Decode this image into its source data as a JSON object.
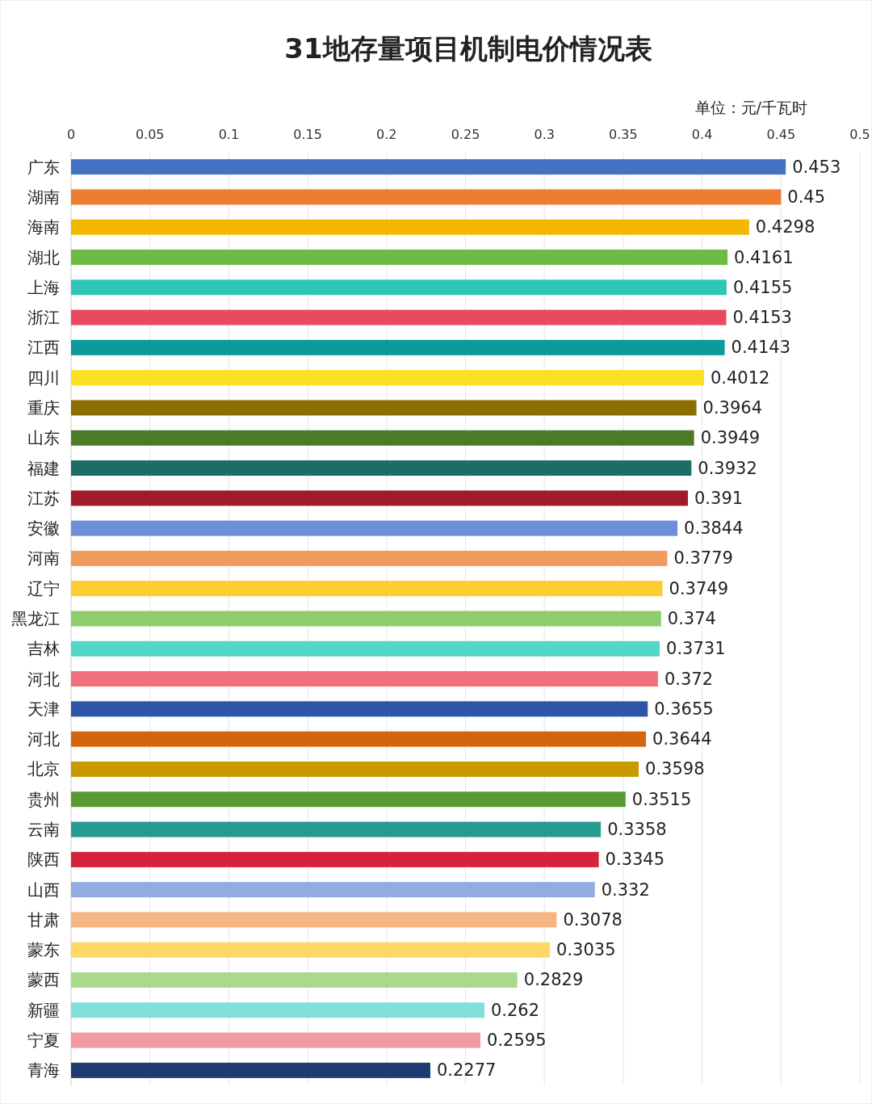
{
  "chart_data": {
    "type": "bar",
    "orientation": "horizontal",
    "title": "31地存量项目机制电价情况表",
    "annotations": [
      "单位：元/千瓦时"
    ],
    "categories": [
      "广东",
      "湖南",
      "海南",
      "湖北",
      "上海",
      "浙江",
      "江西",
      "四川",
      "重庆",
      "山东",
      "福建",
      "江苏",
      "安徽",
      "河南",
      "辽宁",
      "黑龙江",
      "吉林",
      "河北",
      "天津",
      "河北",
      "北京",
      "贵州",
      "云南",
      "陕西",
      "山西",
      "甘肃",
      "蒙东",
      "蒙西",
      "新疆",
      "宁夏",
      "青海"
    ],
    "values": [
      0.453,
      0.45,
      0.4298,
      0.4161,
      0.4155,
      0.4153,
      0.4143,
      0.4012,
      0.3964,
      0.3949,
      0.3932,
      0.391,
      0.3844,
      0.3779,
      0.3749,
      0.374,
      0.3731,
      0.372,
      0.3655,
      0.3644,
      0.3598,
      0.3515,
      0.3358,
      0.3345,
      0.332,
      0.3078,
      0.3035,
      0.2829,
      0.262,
      0.2595,
      0.2277
    ],
    "colors": [
      "#4472c4",
      "#ed7d31",
      "#f2b800",
      "#6dbb45",
      "#2ec4b6",
      "#e84a5f",
      "#0e9a9a",
      "#fde021",
      "#8b6d00",
      "#4b7a29",
      "#1b6e66",
      "#a31a2b",
      "#6f8fd8",
      "#f19c5d",
      "#fdcc30",
      "#8fcc6b",
      "#52d6c8",
      "#ef6f7d",
      "#2e55a8",
      "#d4650f",
      "#c89a00",
      "#5a9a32",
      "#259a91",
      "#d8213a",
      "#92ace2",
      "#f5b482",
      "#fdd865",
      "#a9d98d",
      "#7ee0d8",
      "#f29aa3",
      "#1f3a6e"
    ],
    "xlim": [
      0,
      0.5
    ],
    "xticks": [
      0,
      0.05,
      0.1,
      0.15,
      0.2,
      0.25,
      0.3,
      0.35,
      0.4,
      0.45,
      0.5
    ],
    "grid": "x",
    "data_labels": true
  }
}
